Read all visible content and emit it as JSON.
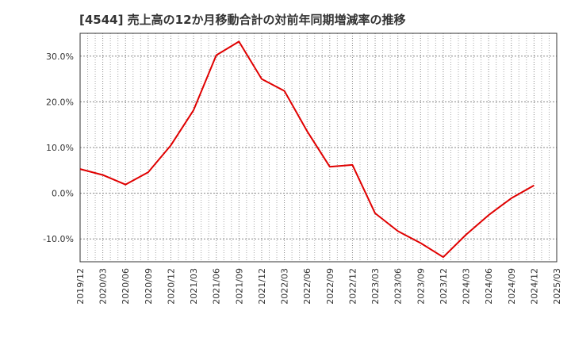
{
  "chart_data": {
    "type": "line",
    "title": "[4544]  売上高の12か月移動合計の対前年同期増減率の推移",
    "xlabel": "",
    "ylabel": "",
    "x": [
      "2019/12",
      "2020/03",
      "2020/06",
      "2020/09",
      "2020/12",
      "2021/03",
      "2021/06",
      "2021/09",
      "2021/12",
      "2022/03",
      "2022/06",
      "2022/09",
      "2022/12",
      "2023/03",
      "2023/06",
      "2023/09",
      "2023/12",
      "2024/03",
      "2024/06",
      "2024/09",
      "2024/12"
    ],
    "x_ticks": [
      "2019/12",
      "2020/03",
      "2020/06",
      "2020/09",
      "2020/12",
      "2021/03",
      "2021/06",
      "2021/09",
      "2021/12",
      "2022/03",
      "2022/06",
      "2022/09",
      "2022/12",
      "2023/03",
      "2023/06",
      "2023/09",
      "2023/12",
      "2024/03",
      "2024/06",
      "2024/09",
      "2024/12",
      "2025/03"
    ],
    "series": [
      {
        "name": "増減率",
        "color": "#e00000",
        "values": [
          5.3,
          4.0,
          1.9,
          4.6,
          10.5,
          18.2,
          30.2,
          33.2,
          25.0,
          22.4,
          13.6,
          5.8,
          6.2,
          -4.4,
          -8.3,
          -10.9,
          -14.0,
          -9.1,
          -4.8,
          -1.1,
          1.7
        ]
      }
    ],
    "ylim": [
      -15,
      35
    ],
    "y_ticks": [
      -10,
      0,
      10,
      20,
      30
    ],
    "y_tick_labels": [
      "-10.0%",
      "0.0%",
      "10.0%",
      "20.0%",
      "30.0%"
    ],
    "grid": true,
    "legend": "none"
  }
}
